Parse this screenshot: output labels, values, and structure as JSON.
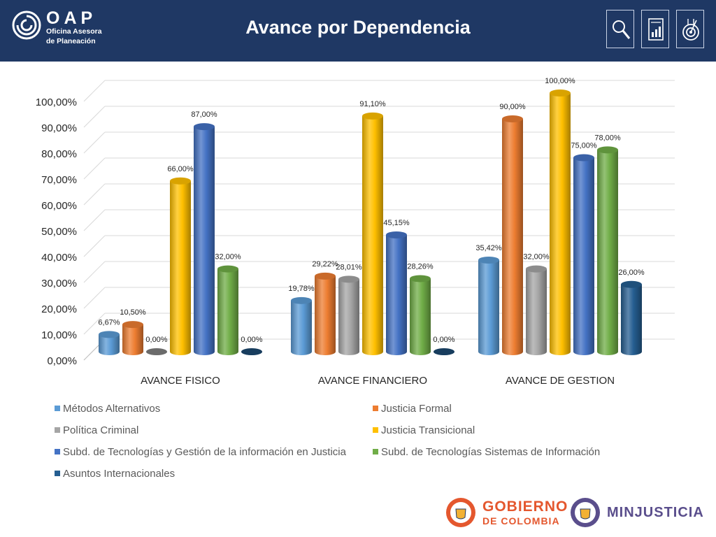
{
  "header": {
    "logo_main": "OAP",
    "logo_line1": "Oficina Asesora",
    "logo_line2": "de Planeación",
    "title": "Avance por Dependencia",
    "icons": [
      "search-document-icon",
      "report-chart-icon",
      "target-icon"
    ]
  },
  "chart_data": {
    "type": "bar",
    "title": "",
    "xlabel": "",
    "ylabel": "",
    "ylim": [
      0,
      100
    ],
    "y_tick_labels": [
      "0,00%",
      "10,00%",
      "20,00%",
      "30,00%",
      "40,00%",
      "50,00%",
      "60,00%",
      "70,00%",
      "80,00%",
      "90,00%",
      "100,00%"
    ],
    "grid": true,
    "legend_position": "bottom",
    "categories": [
      "AVANCE FISICO",
      "AVANCE FINANCIERO",
      "AVANCE DE GESTION"
    ],
    "series": [
      {
        "name": "Métodos Alternativos",
        "color": "#5b9bd5",
        "values": [
          6.67,
          19.78,
          35.42
        ],
        "labels": [
          "6,67%",
          "19,78%",
          "35,42%"
        ]
      },
      {
        "name": "Justicia Formal",
        "color": "#ed7d31",
        "values": [
          10.5,
          29.22,
          90.0
        ],
        "labels": [
          "10,50%",
          "29,22%",
          "90,00%"
        ]
      },
      {
        "name": "Política Criminal",
        "color": "#a5a5a5",
        "values": [
          0.0,
          28.01,
          32.0
        ],
        "labels": [
          "0,00%",
          "28,01%",
          "32,00%"
        ]
      },
      {
        "name": "Justicia Transicional",
        "color": "#ffc000",
        "values": [
          66.0,
          91.1,
          100.0
        ],
        "labels": [
          "66,00%",
          "91,10%",
          "100,00%"
        ]
      },
      {
        "name": "Subd. de Tecnologías y Gestión de la información en Justicia",
        "color": "#4472c4",
        "values": [
          87.0,
          45.15,
          75.0
        ],
        "labels": [
          "87,00%",
          "45,15%",
          "75,00%"
        ]
      },
      {
        "name": "Subd.  de Tecnologías  Sistemas de Información",
        "color": "#70ad47",
        "values": [
          32.0,
          28.26,
          78.0
        ],
        "labels": [
          "32,00%",
          "28,26%",
          "78,00%"
        ]
      },
      {
        "name": "Asuntos Internacionales",
        "color": "#255e91",
        "values": [
          0.0,
          0.0,
          26.0
        ],
        "labels": [
          "0,00%",
          "0,00%",
          "26,00%"
        ]
      }
    ]
  },
  "footer": {
    "gov_line1": "GOBIERNO",
    "gov_line2": "DE COLOMBIA",
    "ministry": "MINJUSTICIA"
  }
}
